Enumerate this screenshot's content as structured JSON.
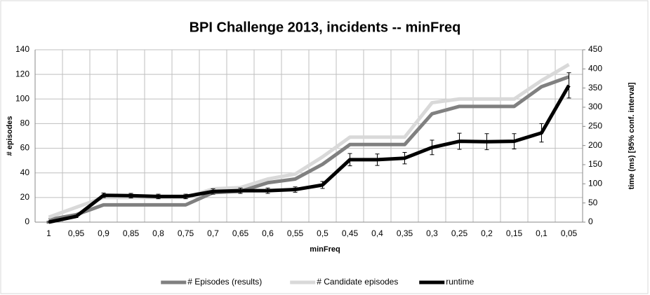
{
  "chart_data": {
    "type": "line",
    "title": "BPI Challenge 2013, incidents -- minFreq",
    "x_label": "minFreq",
    "y_label": "# episodes",
    "y2_label": "time (ms) [95% conf. interval]",
    "categories": [
      "1",
      "0,95",
      "0,9",
      "0,85",
      "0,8",
      "0,75",
      "0,7",
      "0,65",
      "0,6",
      "0,55",
      "0,5",
      "0,45",
      "0,4",
      "0,35",
      "0,3",
      "0,25",
      "0,2",
      "0,15",
      "0,1",
      "0,05"
    ],
    "series": [
      {
        "name": "# Episodes (results)",
        "color": "#808080",
        "axis": "y",
        "values": [
          2,
          6,
          14,
          14,
          14,
          14,
          24,
          25,
          32,
          35,
          47,
          63,
          63,
          63,
          88,
          94,
          94,
          94,
          110,
          118
        ]
      },
      {
        "name": "# Candidate episodes",
        "color": "#d9d9d9",
        "axis": "y",
        "values": [
          4,
          12,
          20,
          20,
          20,
          20,
          27,
          28,
          35,
          39,
          53,
          69,
          69,
          69,
          97,
          100,
          100,
          100,
          115,
          128
        ]
      },
      {
        "name": "runtime",
        "color": "#000000",
        "axis": "y2",
        "values": [
          0,
          15,
          70,
          69,
          67,
          67,
          80,
          82,
          82,
          85,
          97,
          163,
          163,
          167,
          195,
          211,
          210,
          211,
          233,
          357
        ],
        "errors": [
          2,
          3,
          6,
          6,
          6,
          6,
          7,
          7,
          7,
          7,
          9,
          16,
          15,
          15,
          19,
          21,
          21,
          20,
          24,
          33
        ]
      }
    ],
    "ylim": [
      0,
      140
    ],
    "yticks": [
      0,
      20,
      40,
      60,
      80,
      100,
      120,
      140
    ],
    "y2lim": [
      0,
      450
    ],
    "y2ticks": [
      0,
      50,
      100,
      150,
      200,
      250,
      300,
      350,
      400,
      450
    ],
    "grid": true,
    "legend": "bottom"
  }
}
